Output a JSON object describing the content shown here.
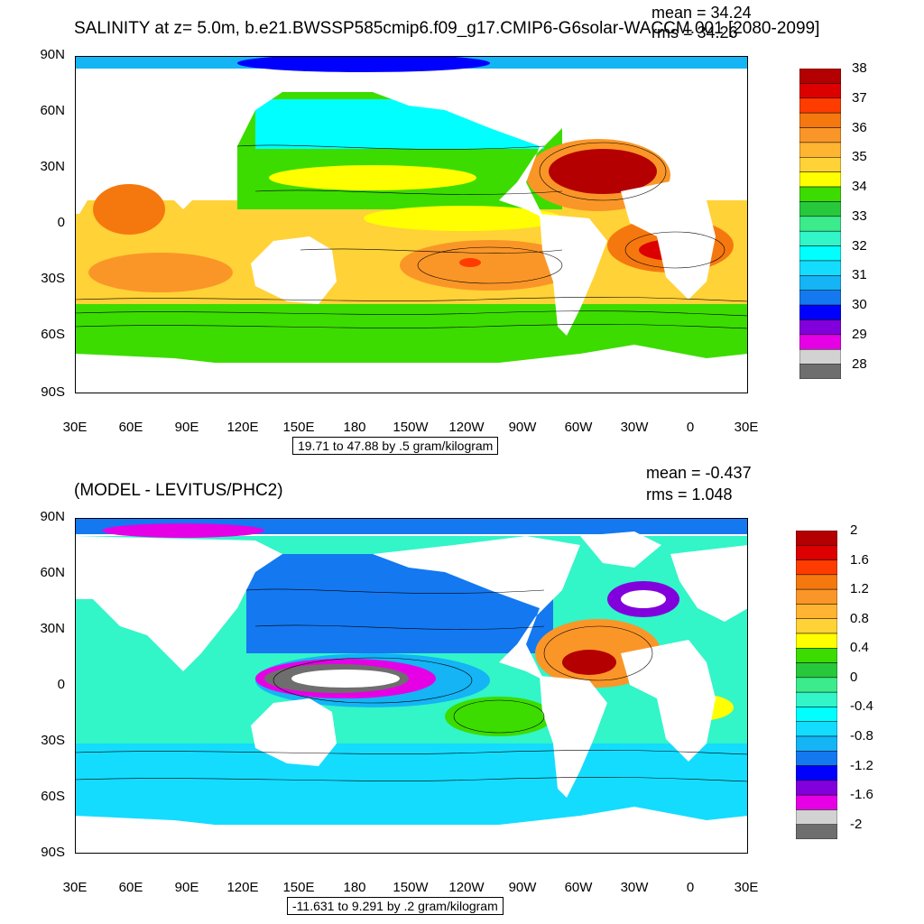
{
  "panels": [
    {
      "title": "SALINITY at z=   5.0m, b.e21.BWSSP585cmip6.f09_g17.CMIP6-G6solar-WACCM.001 [2080-2099]",
      "mean": "mean = 34.24",
      "rms": "rms = 34.26",
      "info": "19.71 to 47.88 by .5 gram/kilogram",
      "y_ticks": [
        "90N",
        "60N",
        "30N",
        "0",
        "30S",
        "60S",
        "90S"
      ],
      "x_ticks": [
        "30E",
        "60E",
        "90E",
        "120E",
        "150E",
        "180",
        "150W",
        "120W",
        "90W",
        "60W",
        "30W",
        "0",
        "30E"
      ],
      "colorbar_labels": [
        "38",
        "37",
        "36",
        "35",
        "34",
        "33",
        "32",
        "31",
        "30",
        "29",
        "28"
      ],
      "colorbar_colors": [
        "#b40000",
        "#dc0000",
        "#ff3c00",
        "#f5780f",
        "#fa9628",
        "#ffb432",
        "#ffd237",
        "#ffff00",
        "#3cdc00",
        "#28c83c",
        "#3ceb8c",
        "#32f5c8",
        "#00ffff",
        "#14dcff",
        "#14b4f5",
        "#1478f0",
        "#0000ff",
        "#8200dc",
        "#e600e6",
        "#d2d2d2",
        "#6e6e6e"
      ]
    },
    {
      "title": "(MODEL - LEVITUS/PHC2)",
      "mean": "mean = -0.437",
      "rms": "rms = 1.048",
      "info": "-11.631 to 9.291 by .2 gram/kilogram",
      "y_ticks": [
        "90N",
        "60N",
        "30N",
        "0",
        "30S",
        "60S",
        "90S"
      ],
      "x_ticks": [
        "30E",
        "60E",
        "90E",
        "120E",
        "150E",
        "180",
        "150W",
        "120W",
        "90W",
        "60W",
        "30W",
        "0",
        "30E"
      ],
      "colorbar_labels": [
        "2",
        "1.6",
        "1.2",
        "0.8",
        "0.4",
        "0",
        "-0.4",
        "-0.8",
        "-1.2",
        "-1.6",
        "-2"
      ],
      "colorbar_colors": [
        "#b40000",
        "#dc0000",
        "#ff3c00",
        "#f5780f",
        "#fa9628",
        "#ffb432",
        "#ffd237",
        "#ffff00",
        "#3cdc00",
        "#28c83c",
        "#3ceb8c",
        "#32f5c8",
        "#00ffff",
        "#14dcff",
        "#14b4f5",
        "#1478f0",
        "#0000ff",
        "#8200dc",
        "#e600e6",
        "#d2d2d2",
        "#6e6e6e"
      ]
    }
  ]
}
